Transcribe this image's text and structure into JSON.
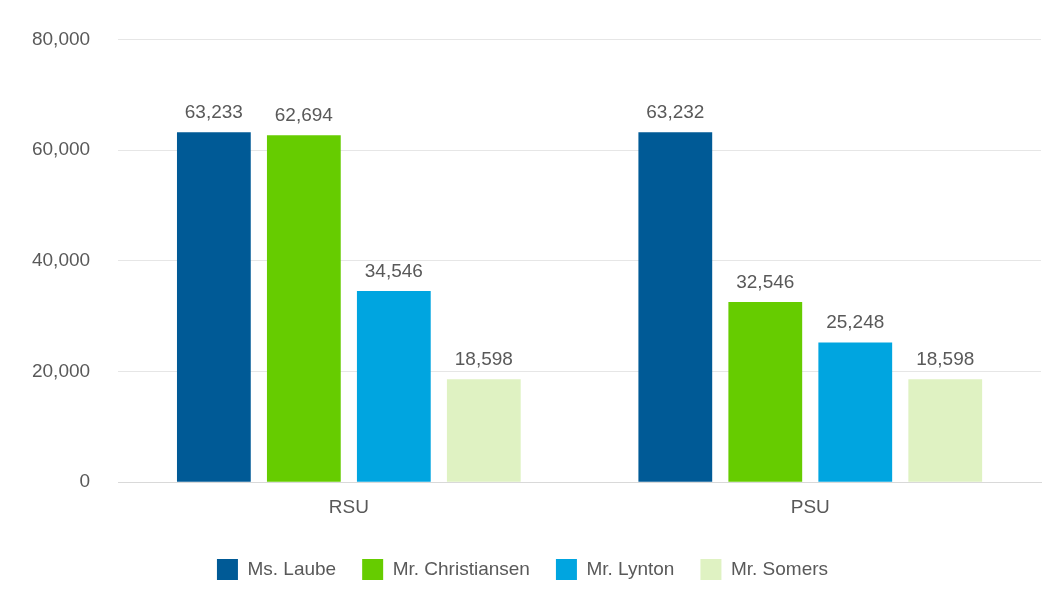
{
  "chart_data": {
    "type": "bar",
    "categories": [
      "RSU",
      "PSU"
    ],
    "series": [
      {
        "name": "Ms. Laube",
        "color": "#005a96",
        "values": [
          63233,
          63232
        ],
        "value_labels": [
          "63,233",
          "63,232"
        ]
      },
      {
        "name": "Mr. Christiansen",
        "color": "#66cc00",
        "values": [
          62694,
          32546
        ],
        "value_labels": [
          "62,694",
          "32,546"
        ]
      },
      {
        "name": "Mr. Lynton",
        "color": "#00a5e0",
        "values": [
          34546,
          25248
        ],
        "value_labels": [
          "34,546",
          "25,248"
        ]
      },
      {
        "name": "Mr. Somers",
        "color": "#dff2c2",
        "values": [
          18598,
          18598
        ],
        "value_labels": [
          "18,598",
          "18,598"
        ]
      }
    ],
    "ylim": [
      0,
      80000
    ],
    "yticks": [
      {
        "value": 0,
        "label": "0"
      },
      {
        "value": 20000,
        "label": "20,000"
      },
      {
        "value": 40000,
        "label": "40,000"
      },
      {
        "value": 60000,
        "label": "60,000"
      },
      {
        "value": 80000,
        "label": "80,000"
      }
    ],
    "grid": "y",
    "legend": "bottom"
  }
}
